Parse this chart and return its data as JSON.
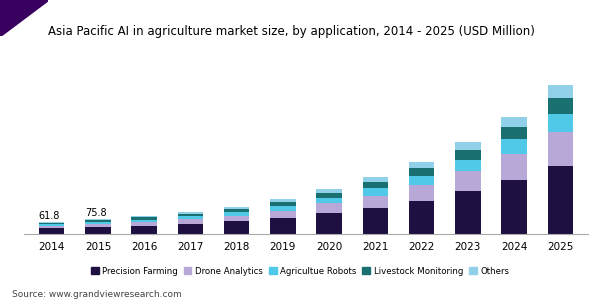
{
  "years": [
    "2014",
    "2015",
    "2016",
    "2017",
    "2018",
    "2019",
    "2020",
    "2021",
    "2022",
    "2023",
    "2024",
    "2025"
  ],
  "precision_farming": [
    28,
    33,
    40,
    50,
    62,
    80,
    105,
    130,
    165,
    210,
    265,
    335
  ],
  "drone_analytics": [
    13,
    16,
    19,
    23,
    28,
    36,
    47,
    60,
    78,
    100,
    130,
    170
  ],
  "agriculture_robots": [
    8,
    10,
    12,
    14,
    17,
    22,
    28,
    35,
    45,
    56,
    72,
    90
  ],
  "livestock_monitoring": [
    7,
    9,
    11,
    13,
    15,
    19,
    24,
    30,
    38,
    48,
    60,
    76
  ],
  "others": [
    5,
    7,
    8,
    10,
    12,
    15,
    20,
    25,
    32,
    40,
    50,
    65
  ],
  "annotations": [
    {
      "year_idx": 0,
      "text": "61.8"
    },
    {
      "year_idx": 1,
      "text": "75.8"
    }
  ],
  "colors": {
    "precision_farming": "#1e1040",
    "drone_analytics": "#b8a8d8",
    "agriculture_robots": "#50c8e8",
    "livestock_monitoring": "#1a7070",
    "others": "#90d0e8"
  },
  "legend_labels": [
    "Precision Farming",
    "Drone Analytics",
    "Agricultue Robots",
    "Livestock Monitoring",
    "Others"
  ],
  "title": "Asia Pacific AI in agriculture market size, by application, 2014 - 2025 (USD Million)",
  "source": "Source: www.grandviewresearch.com",
  "title_fontsize": 8.5,
  "source_fontsize": 6.5,
  "bar_width": 0.55,
  "background_color": "#ffffff",
  "accent_color": "#3a0060",
  "ylim": [
    0,
    800
  ]
}
